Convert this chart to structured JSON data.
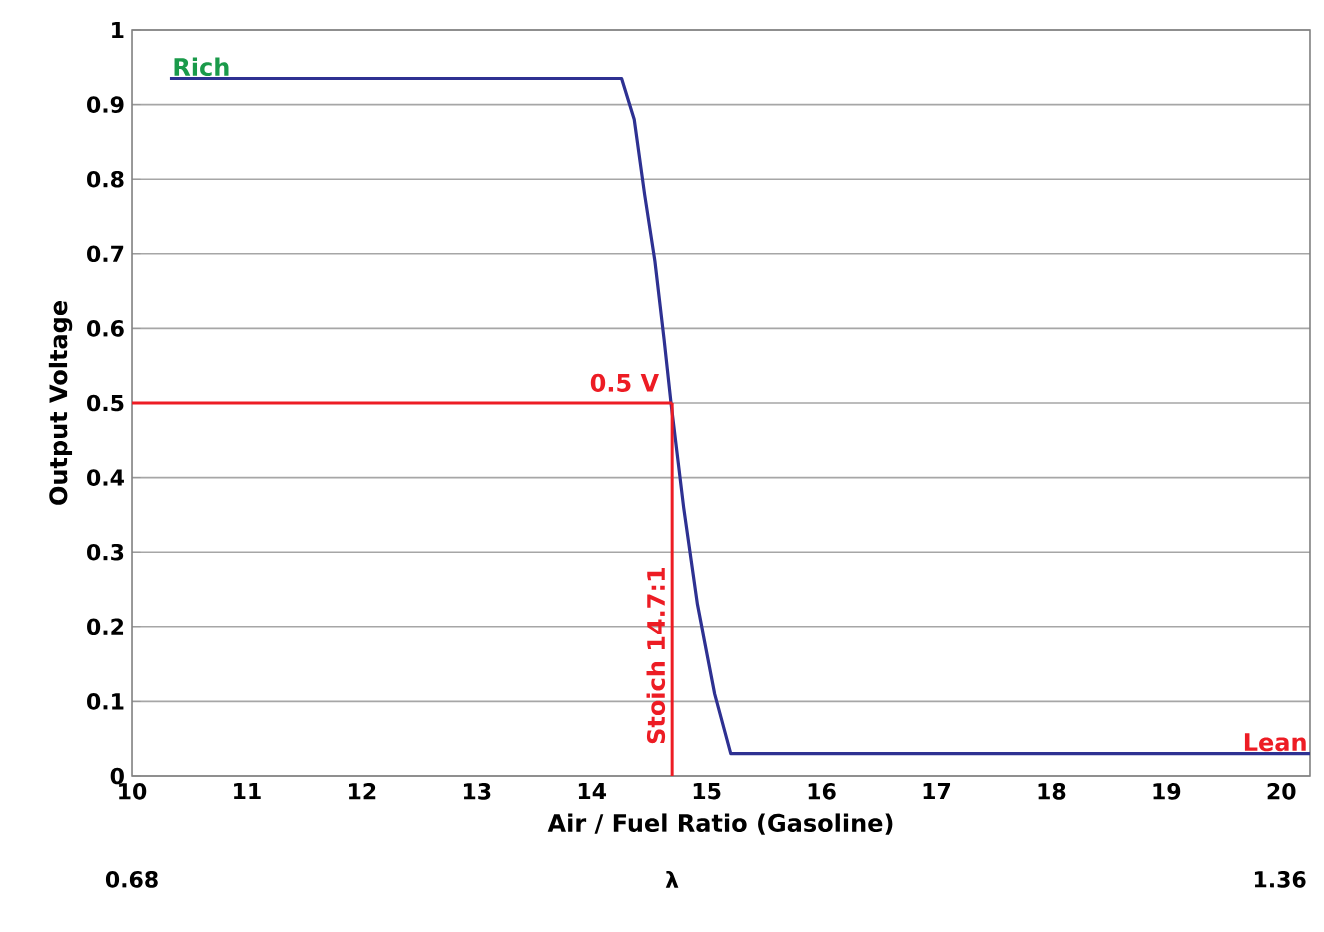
{
  "chart_data": {
    "type": "line",
    "xlabel": "Air / Fuel Ratio (Gasoline)",
    "ylabel": "Output Voltage",
    "xlim": [
      10,
      20.25
    ],
    "xticks": [
      10,
      11,
      12,
      13,
      14,
      15,
      16,
      17,
      18,
      19,
      20
    ],
    "ylim": [
      0,
      1
    ],
    "yticks": [
      0,
      0.1,
      0.2,
      0.3,
      0.4,
      0.5,
      0.6,
      0.7,
      0.8,
      0.9,
      1
    ],
    "x2lim": [
      0.68,
      1.378
    ],
    "x2ticks": [
      0.68,
      {
        "value": 1,
        "label": "λ"
      },
      1.36
    ],
    "grid": "y",
    "marker": "none",
    "line_style": "solid",
    "series": [
      {
        "color": "#2e3192",
        "x": [
          10.33,
          12.4,
          14.26,
          14.37,
          14.46,
          14.55,
          14.63,
          14.69,
          14.8,
          14.92,
          15.07,
          15.21,
          20.25
        ],
        "values": [
          0.935,
          0.935,
          0.935,
          0.88,
          0.78,
          0.69,
          0.585,
          0.5,
          0.36,
          0.23,
          0.11,
          0.03,
          0.03
        ]
      }
    ],
    "ref_lines": [
      {
        "axis": "y",
        "value": 0.5,
        "label": "0.5 V",
        "color": "#ed1c24"
      },
      {
        "axis": "x",
        "value": 14.7,
        "label": "Stoich 14.7:1",
        "color": "#ed1c24"
      }
    ],
    "annotations": [
      {
        "text": "Rich",
        "x": 10.33,
        "y": 0.935
      },
      {
        "text": "Lean",
        "x": 20.25,
        "y": 0.03
      }
    ]
  }
}
